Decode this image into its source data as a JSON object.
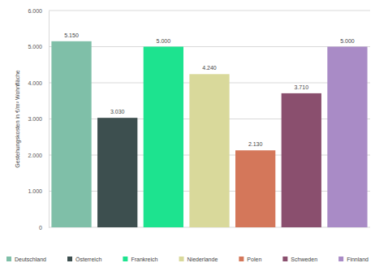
{
  "chart_data": {
    "type": "bar",
    "ylabel": "Gestehungskosten in €/m² Wohnfläche",
    "categories": [
      "Deutschland",
      "Österreich",
      "Frankreich",
      "Niederlande",
      "Polen",
      "Schweden",
      "Finnland"
    ],
    "values": [
      5150,
      3030,
      5000,
      4240,
      2130,
      3710,
      5000
    ],
    "value_labels": [
      "5.150",
      "3.030",
      "5.000",
      "4.240",
      "2.130",
      "3.710",
      "5.000"
    ],
    "colors": [
      "#7fbfa8",
      "#3d4f4f",
      "#1de38f",
      "#d9d99b",
      "#d4775a",
      "#8a4f6e",
      "#a98bc6"
    ],
    "ylim": [
      0,
      6000
    ],
    "yticks": [
      {
        "value": 0,
        "label": "0"
      },
      {
        "value": 1000,
        "label": "1.000"
      },
      {
        "value": 2000,
        "label": "2.000"
      },
      {
        "value": 3000,
        "label": "3.000"
      },
      {
        "value": 4000,
        "label": "4.000"
      },
      {
        "value": 5000,
        "label": "5.000"
      },
      {
        "value": 6000,
        "label": "6.000"
      }
    ],
    "grid": true,
    "data_labels": true,
    "legend": "bottom",
    "tick_labels": "y"
  }
}
